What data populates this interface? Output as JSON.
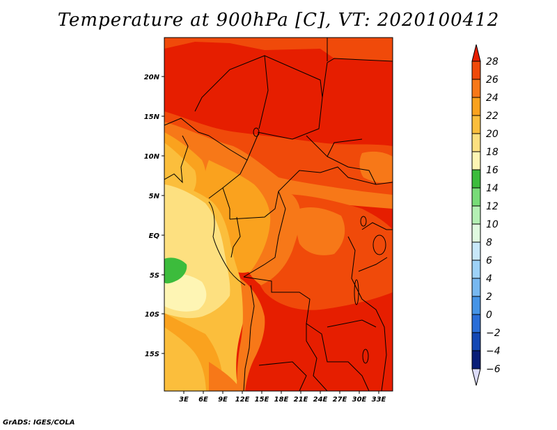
{
  "title": "Temperature at 900hPa [C], VT: 2020100412",
  "footer": "GrADS: IGES/COLA",
  "map": {
    "region": "Central Africa",
    "variable": "Temperature",
    "level": "900hPa",
    "units": "C",
    "valid_time": "2020100412",
    "lon_range": [
      0,
      35
    ],
    "lat_range": [
      -20,
      25
    ],
    "x_tick_labels": [
      "3E",
      "6E",
      "9E",
      "12E",
      "15E",
      "18E",
      "21E",
      "24E",
      "27E",
      "30E",
      "33E"
    ],
    "y_tick_labels": [
      "20N",
      "15N",
      "10N",
      "5N",
      "EQ",
      "5S",
      "10S",
      "15S"
    ]
  },
  "colorbar": {
    "labels": [
      "28",
      "26",
      "24",
      "22",
      "20",
      "18",
      "16",
      "14",
      "12",
      "10",
      "8",
      "6",
      "4",
      "2",
      "0",
      "−2",
      "−4",
      "−6"
    ],
    "colors": [
      "#e61e00",
      "#f04a0a",
      "#f77818",
      "#faa21e",
      "#fbbe3c",
      "#fde080",
      "#fef5b4",
      "#3cbc3c",
      "#78dc78",
      "#b4f0b4",
      "#e0fae0",
      "#c8e8fa",
      "#9ed2f8",
      "#78b8f0",
      "#4694e6",
      "#2a6ed8",
      "#1448b4",
      "#0a1e78",
      "#dcdcfa"
    ]
  }
}
